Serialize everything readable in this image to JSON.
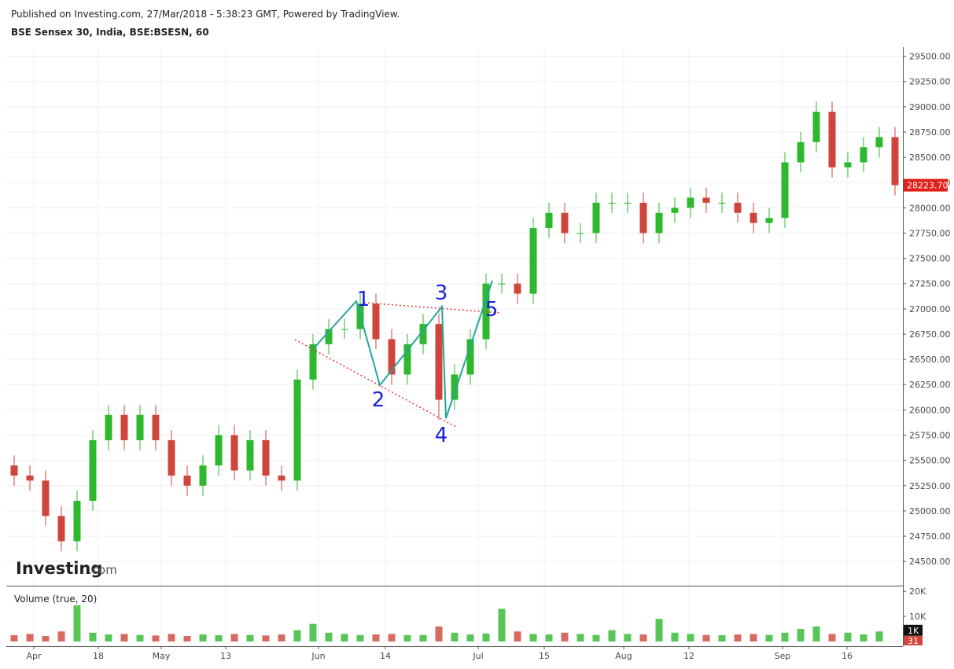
{
  "header": {
    "published": "Published on Investing.com, 27/Mar/2018 - 5:38:23 GMT, Powered by TradingView.",
    "symbol": "BSE Sensex 30, India, BSE:BSESN, 60"
  },
  "logo": {
    "main": "Investing",
    "suffix": ".com"
  },
  "wave_labels": [
    "1",
    "2",
    "3",
    "4",
    "5"
  ],
  "chart_data": {
    "type": "candlestick",
    "up_color": "#2db82d",
    "down_color": "#d0453b",
    "open": [
      25450,
      25350,
      25300,
      24950,
      24700,
      25100,
      25700,
      25950,
      25700,
      25950,
      25700,
      25350,
      25250,
      25450,
      25750,
      25400,
      25700,
      25350,
      25300,
      26300,
      26650,
      26800,
      26800,
      27050,
      26700,
      26350,
      26650,
      26850,
      26100,
      26350,
      26700,
      27250,
      27250,
      27150,
      27800,
      27950,
      27750,
      27750,
      28050,
      28050,
      28050,
      27750,
      27950,
      28000,
      28100,
      28050,
      28050,
      27950,
      27850,
      27900,
      28450,
      28650,
      28950,
      28400,
      28450,
      28600,
      28700
    ],
    "high": [
      25550,
      25450,
      25400,
      25050,
      25200,
      25800,
      26050,
      26050,
      26050,
      26050,
      25800,
      25450,
      25550,
      25850,
      25850,
      25800,
      25800,
      25450,
      26400,
      26750,
      26900,
      26900,
      27150,
      27150,
      26800,
      26750,
      26950,
      26950,
      26450,
      26800,
      27350,
      27350,
      27350,
      27900,
      28050,
      28050,
      27850,
      28150,
      28150,
      28150,
      28150,
      28050,
      28100,
      28200,
      28200,
      28150,
      28150,
      28050,
      28000,
      28550,
      28750,
      29050,
      29050,
      28550,
      28700,
      28800,
      28800
    ],
    "low": [
      25250,
      25200,
      24850,
      24600,
      24600,
      25000,
      25600,
      25600,
      25600,
      25600,
      25250,
      25150,
      25150,
      25350,
      25300,
      25300,
      25250,
      25200,
      25200,
      26200,
      26550,
      26700,
      26700,
      26600,
      26250,
      26250,
      26550,
      25900,
      26000,
      26250,
      26600,
      27150,
      27050,
      27050,
      27700,
      27650,
      27650,
      27650,
      27950,
      27950,
      27650,
      27650,
      27850,
      27900,
      27950,
      27950,
      27850,
      27750,
      27750,
      27800,
      28350,
      28550,
      28300,
      28300,
      28350,
      28500,
      28123.7
    ],
    "close": [
      25350,
      25300,
      24950,
      24700,
      25100,
      25700,
      25950,
      25700,
      25950,
      25700,
      25350,
      25250,
      25450,
      25750,
      25400,
      25700,
      25350,
      25300,
      26300,
      26650,
      26800,
      26800,
      27050,
      26700,
      26350,
      26650,
      26850,
      26100,
      26350,
      26700,
      27250,
      27250,
      27150,
      27800,
      27950,
      27750,
      27750,
      28050,
      28050,
      28050,
      27750,
      27950,
      28000,
      28100,
      28050,
      28050,
      27950,
      27850,
      27900,
      28450,
      28650,
      28950,
      28400,
      28450,
      28600,
      28700,
      28223.7
    ],
    "xlim": [
      -0.5,
      56.5
    ],
    "xticks": [
      {
        "value": 1.25,
        "label": "Apr"
      },
      {
        "value": 5.35,
        "label": "18"
      },
      {
        "value": 9.35,
        "label": "May"
      },
      {
        "value": 13.45,
        "label": "13"
      },
      {
        "value": 19.35,
        "label": "Jun"
      },
      {
        "value": 23.6,
        "label": "14"
      },
      {
        "value": 29.5,
        "label": "Jul"
      },
      {
        "value": 33.7,
        "label": "15"
      },
      {
        "value": 38.75,
        "label": "Aug"
      },
      {
        "value": 42.9,
        "label": "12"
      },
      {
        "value": 48.85,
        "label": "Sep"
      },
      {
        "value": 52.95,
        "label": "16"
      }
    ],
    "ylim": [
      24260,
      29590
    ],
    "yticks": [
      {
        "value": 24500,
        "label": "24500.00"
      },
      {
        "value": 24750,
        "label": "24750.00"
      },
      {
        "value": 25000,
        "label": "25000.00"
      },
      {
        "value": 25250,
        "label": "25250.00"
      },
      {
        "value": 25500,
        "label": "25500.00"
      },
      {
        "value": 25750,
        "label": "25750.00"
      },
      {
        "value": 26000,
        "label": "26000.00"
      },
      {
        "value": 26250,
        "label": "26250.00"
      },
      {
        "value": 26500,
        "label": "26500.00"
      },
      {
        "value": 26750,
        "label": "26750.00"
      },
      {
        "value": 27000,
        "label": "27000.00"
      },
      {
        "value": 27250,
        "label": "27250.00"
      },
      {
        "value": 27500,
        "label": "27500.00"
      },
      {
        "value": 27750,
        "label": "27750.00"
      },
      {
        "value": 28000,
        "label": "28000.00"
      },
      {
        "value": 28250,
        "label": "28250.00"
      },
      {
        "value": 28500,
        "label": "28500.00"
      },
      {
        "value": 28750,
        "label": "28750.00"
      },
      {
        "value": 29000,
        "label": "29000.00"
      },
      {
        "value": 29250,
        "label": "29250.00"
      },
      {
        "value": 29500,
        "label": "29500.00"
      }
    ],
    "last_price": {
      "value": 28223.7,
      "label": "28223.70"
    },
    "grid": true,
    "volume": {
      "title": "Volume (true, 20)",
      "values": [
        2500,
        3000,
        2200,
        4000,
        14400,
        3500,
        2800,
        3000,
        2600,
        2400,
        3000,
        2200,
        2800,
        2500,
        3000,
        2600,
        2400,
        2800,
        4500,
        7000,
        3500,
        3000,
        2600,
        2800,
        3000,
        2500,
        2600,
        6000,
        3500,
        2800,
        3200,
        13000,
        4000,
        3000,
        2800,
        3500,
        3000,
        2600,
        4500,
        3000,
        2800,
        9000,
        3500,
        3000,
        2600,
        2500,
        2800,
        3000,
        2600,
        3500,
        5000,
        6000,
        3000,
        3500,
        2800,
        4000,
        31
      ],
      "ylim": [
        0,
        21900
      ],
      "yticks": [
        {
          "value": 10000,
          "label": "10K"
        },
        {
          "value": 20000,
          "label": "20K"
        }
      ],
      "ma_label": {
        "value": 1000,
        "label": "1K"
      }
    }
  }
}
